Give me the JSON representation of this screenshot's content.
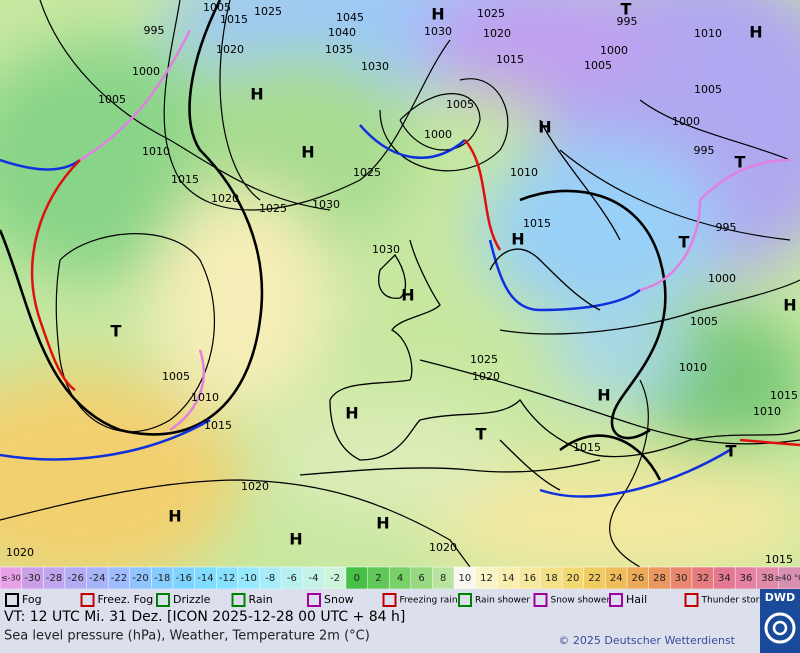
{
  "map": {
    "pressure_labels": [
      "1005",
      "1015",
      "1025",
      "1045",
      "1040",
      "1035",
      "1030",
      "1030",
      "1025",
      "1020",
      "995",
      "1000",
      "1005",
      "1010",
      "1005",
      "1000",
      "995",
      "995",
      "1000",
      "1005",
      "1010",
      "1010",
      "1015",
      "1015",
      "995",
      "1000",
      "1005",
      "1010",
      "1015",
      "1020",
      "1025",
      "1030",
      "1025",
      "1015",
      "1005",
      "1000",
      "1010",
      "1015",
      "1030",
      "1025",
      "1020",
      "1005",
      "1010",
      "1015",
      "1020",
      "1020",
      "1020",
      "1015",
      "1020"
    ],
    "highs": [
      "H",
      "H",
      "H",
      "H",
      "H",
      "H",
      "H",
      "H",
      "H",
      "H",
      "H",
      "H",
      "H"
    ],
    "lows": [
      "T",
      "T",
      "T",
      "T",
      "T",
      "T"
    ]
  },
  "color_scale": {
    "labels": [
      "≤-30",
      "-30",
      "-28",
      "-26",
      "-24",
      "-22",
      "-20",
      "-18",
      "-16",
      "-14",
      "-12",
      "-10",
      "-8",
      "-6",
      "-4",
      "-2",
      "0",
      "2",
      "4",
      "6",
      "8",
      "10",
      "12",
      "14",
      "16",
      "18",
      "20",
      "22",
      "24",
      "26",
      "28",
      "30",
      "32",
      "34",
      "36",
      "38",
      "≥40 °C"
    ],
    "colors": [
      "#e8a0e8",
      "#c9a0e6",
      "#bfa6ee",
      "#b3acf4",
      "#a8b4fa",
      "#9fbcff",
      "#8fc4ff",
      "#86ccff",
      "#7fd4ff",
      "#80dcff",
      "#88e2ff",
      "#98e8ff",
      "#a8ecf8",
      "#b8f0f0",
      "#c4f2e8",
      "#cff4dc",
      "#48c048",
      "#60c858",
      "#78d068",
      "#98d880",
      "#b8e4a0",
      "#f8f8f0",
      "#f8f4c8",
      "#f8eeb0",
      "#f6e89c",
      "#f4e088",
      "#f2d870",
      "#f0cc60",
      "#eebc58",
      "#ecaa58",
      "#ea9860",
      "#e88870",
      "#e67c80",
      "#e47890",
      "#e480a0",
      "#e08aa8",
      "#d890b0"
    ]
  },
  "legend": [
    "Fog",
    "Freez. Fog",
    "Drizzle",
    "Rain",
    "Snow",
    "Freezing rain",
    "Rain shower",
    "Snow shower",
    "Hail",
    "Thunder storm"
  ],
  "footer": {
    "valid_time": "VT: 12 UTC Mi.  31 Dez. [ICON 2025-12-28  00 UTC + 84 h]",
    "description": "Sea level pressure (hPa), Weather, Temperature 2m (°C)",
    "copyright": "© 2025 Deutscher Wetterdienst",
    "logo": "DWD"
  }
}
